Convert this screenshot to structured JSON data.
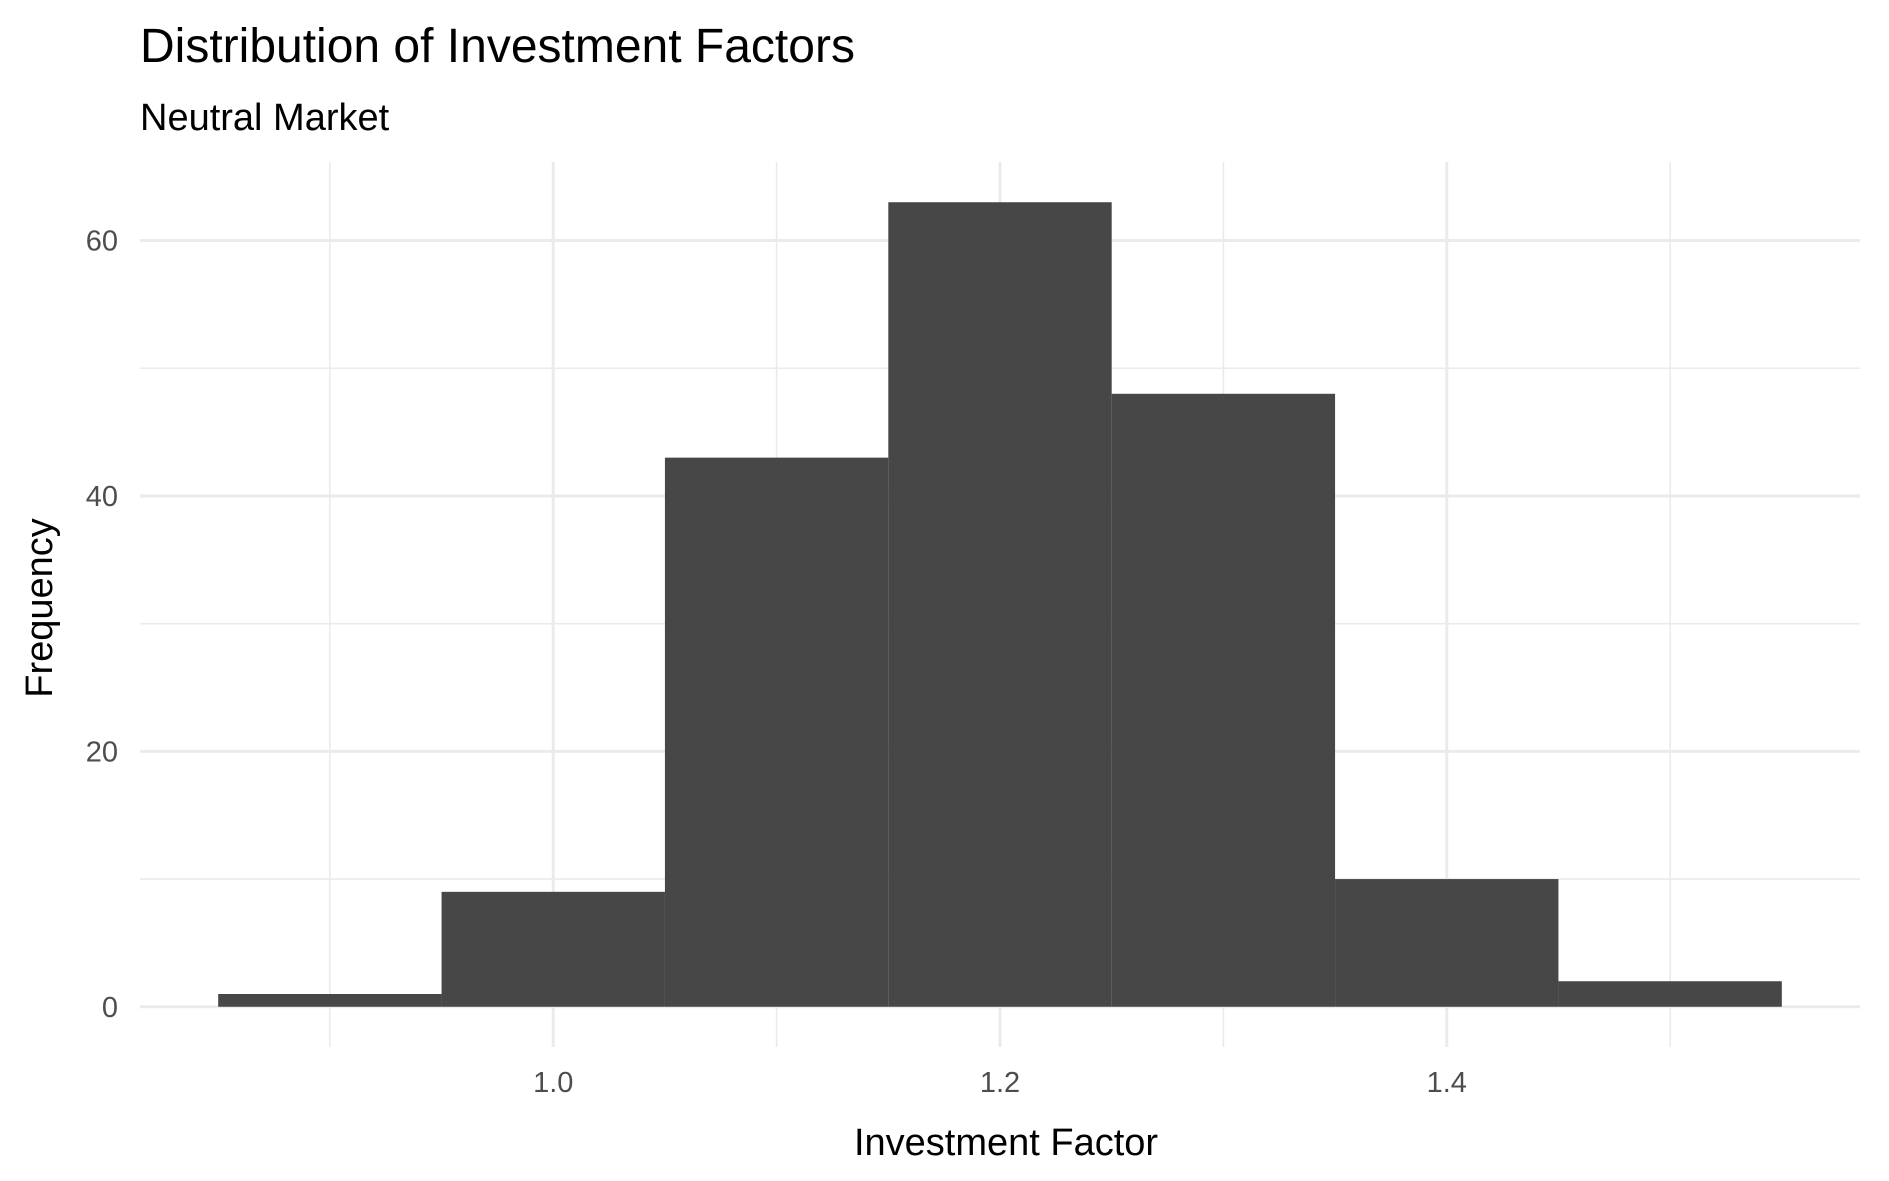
{
  "chart_data": {
    "type": "bar",
    "title": "Distribution of Investment Factors",
    "subtitle": "Neutral Market",
    "xlabel": "Investment Factor",
    "ylabel": "Frequency",
    "bin_width": 0.1,
    "bins": [
      {
        "x0": 0.85,
        "x1": 0.95,
        "count": 1
      },
      {
        "x0": 0.95,
        "x1": 1.05,
        "count": 9
      },
      {
        "x0": 1.05,
        "x1": 1.15,
        "count": 43
      },
      {
        "x0": 1.15,
        "x1": 1.25,
        "count": 63
      },
      {
        "x0": 1.25,
        "x1": 1.35,
        "count": 48
      },
      {
        "x0": 1.35,
        "x1": 1.45,
        "count": 10
      },
      {
        "x0": 1.45,
        "x1": 1.55,
        "count": 2
      }
    ],
    "xlim": [
      0.815,
      1.585
    ],
    "ylim": [
      -3.15,
      66.15
    ],
    "x_ticks": [
      1.0,
      1.2,
      1.4
    ],
    "x_tick_labels": [
      "1.0",
      "1.2",
      "1.4"
    ],
    "x_minor_ticks": [
      0.9,
      1.1,
      1.3,
      1.5
    ],
    "y_ticks": [
      0,
      20,
      40,
      60
    ],
    "y_tick_labels": [
      "0",
      "20",
      "40",
      "60"
    ],
    "y_minor_ticks": [
      10,
      30,
      50
    ],
    "grid": true,
    "bar_color": "#474747"
  }
}
